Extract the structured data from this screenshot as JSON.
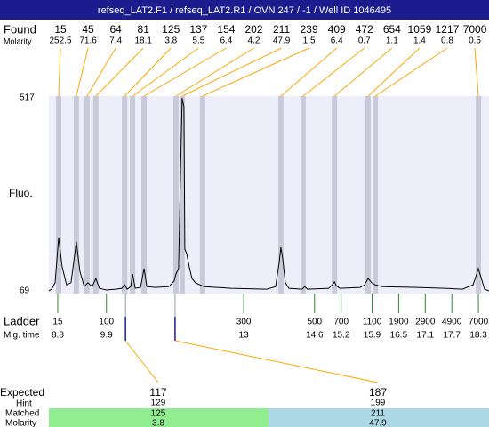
{
  "title": "refseq_LAT2.F1 / refseq_LAT2.R1 / OVN 247 / -1 / Well ID 1046495",
  "chart_data": {
    "type": "electropherogram",
    "y_label": "Fluo.",
    "ylim": [
      69,
      517
    ],
    "yticks": [
      69,
      517
    ],
    "xlim": [
      8.6,
      18.54
    ],
    "trace": {
      "x": [
        8.6,
        8.66,
        8.74,
        8.82,
        8.9,
        9.0,
        9.1,
        9.22,
        9.3,
        9.4,
        9.48,
        9.58,
        9.66,
        9.74,
        9.9,
        10.11,
        10.25,
        10.31,
        10.37,
        10.45,
        10.49,
        10.55,
        10.67,
        10.75,
        10.81,
        11.01,
        11.31,
        11.43,
        11.47,
        11.53,
        11.57,
        11.61,
        11.65,
        11.67,
        11.71,
        11.77,
        11.83,
        11.91,
        12.01,
        12.11,
        12.72,
        13.52,
        13.72,
        13.8,
        13.84,
        13.88,
        13.94,
        14.02,
        14.32,
        14.38,
        14.44,
        14.92,
        15.0,
        15.05,
        15.09,
        15.17,
        15.63,
        15.73,
        15.81,
        15.89,
        15.97,
        16.13,
        16.93,
        17.53,
        17.94,
        18.18,
        18.26,
        18.3,
        18.36,
        18.44,
        18.54
      ],
      "values": [
        69,
        73,
        88,
        193,
        125,
        83,
        88,
        183,
        114,
        79,
        88,
        79,
        98,
        75,
        71,
        73,
        75,
        83,
        73,
        79,
        108,
        75,
        77,
        121,
        79,
        77,
        79,
        92,
        108,
        121,
        331,
        517,
        496,
        166,
        156,
        125,
        98,
        88,
        83,
        79,
        75,
        73,
        79,
        135,
        170,
        145,
        88,
        75,
        73,
        79,
        73,
        75,
        83,
        90,
        81,
        75,
        77,
        83,
        98,
        88,
        83,
        79,
        77,
        75,
        73,
        83,
        108,
        121,
        100,
        73,
        69
      ],
      "color": "#000000"
    },
    "found": {
      "label": "Found",
      "molarity_label": "Molarity",
      "sizes": [
        15,
        45,
        64,
        81,
        125,
        137,
        154,
        202,
        211,
        239,
        409,
        472,
        654,
        1059,
        1217,
        7000
      ],
      "molarity": [
        252.5,
        71.6,
        7.4,
        18.1,
        3.8,
        5.5,
        6.4,
        4.2,
        47.9,
        1.5,
        6.4,
        0.7,
        1.1,
        1.4,
        0.8,
        0.5
      ],
      "x": [
        8.82,
        9.22,
        9.46,
        9.66,
        10.31,
        10.49,
        10.75,
        11.47,
        11.61,
        12.07,
        13.84,
        14.34,
        15.05,
        15.81,
        15.97,
        18.3
      ]
    },
    "ladder": {
      "label": "Ladder",
      "time_label": "Mig. time",
      "sizes": [
        15,
        100,
        300,
        500,
        700,
        1100,
        1900,
        2900,
        4900,
        7000
      ],
      "times": [
        8.8,
        9.9,
        13,
        14.6,
        15.2,
        15.9,
        16.5,
        17.1,
        17.7,
        18.3
      ]
    },
    "expected": {
      "expected_label": "Expected",
      "hint_label": "Hint",
      "matched_label": "Matched",
      "molarity_label": "Molarity",
      "sizes": [
        117,
        187
      ],
      "x": [
        10.33,
        11.45
      ],
      "hint": [
        129,
        199
      ],
      "matched": [
        125,
        211
      ],
      "molarity": [
        3.8,
        47.9
      ],
      "colors": [
        "#90ee90",
        "#add8e6"
      ]
    }
  }
}
